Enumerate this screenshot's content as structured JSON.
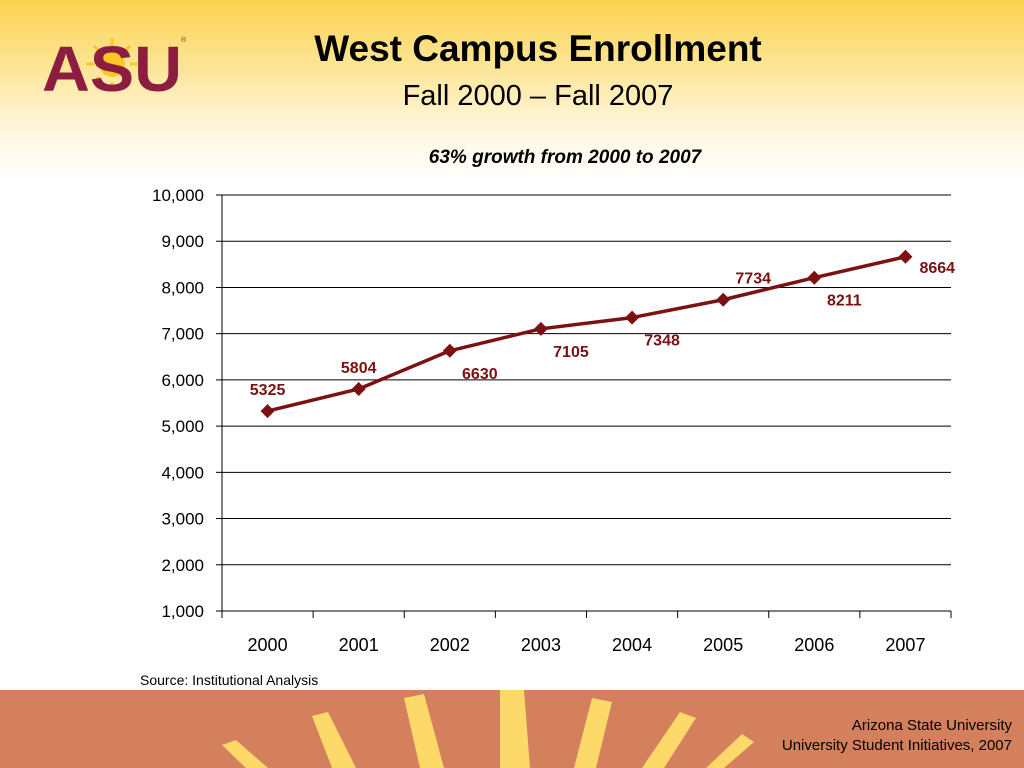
{
  "header": {
    "title": "West Campus Enrollment",
    "subtitle": "Fall 2000 – Fall 2007",
    "logo_text": "ASU"
  },
  "chart_data": {
    "type": "line",
    "title": "63% growth from 2000 to 2007",
    "categories": [
      "2000",
      "2001",
      "2002",
      "2003",
      "2004",
      "2005",
      "2006",
      "2007"
    ],
    "series": [
      {
        "values": [
          5325,
          5804,
          6630,
          7105,
          7348,
          7734,
          8211,
          8664
        ],
        "color": "#7b1113"
      }
    ],
    "data_labels": [
      "5325",
      "5804",
      "6630",
      "7105",
      "7348",
      "7734",
      "8211",
      "8664"
    ],
    "ylim": [
      1000,
      10000
    ],
    "y_ticks": [
      1000,
      2000,
      3000,
      4000,
      5000,
      6000,
      7000,
      8000,
      9000,
      10000
    ],
    "y_tick_labels": [
      "1,000",
      "2,000",
      "3,000",
      "4,000",
      "5,000",
      "6,000",
      "7,000",
      "8,000",
      "9,000",
      "10,000"
    ],
    "xlabel": "",
    "ylabel": "",
    "grid": true,
    "legend": "none"
  },
  "source": "Source:  Institutional Analysis",
  "footer": {
    "line1": "Arizona State University",
    "line2": "University Student Initiatives, 2007"
  },
  "colors": {
    "maroon": "#8c1d40",
    "gold": "#ffc627",
    "series": "#7b1113",
    "footer_bg": "#d4805d"
  }
}
